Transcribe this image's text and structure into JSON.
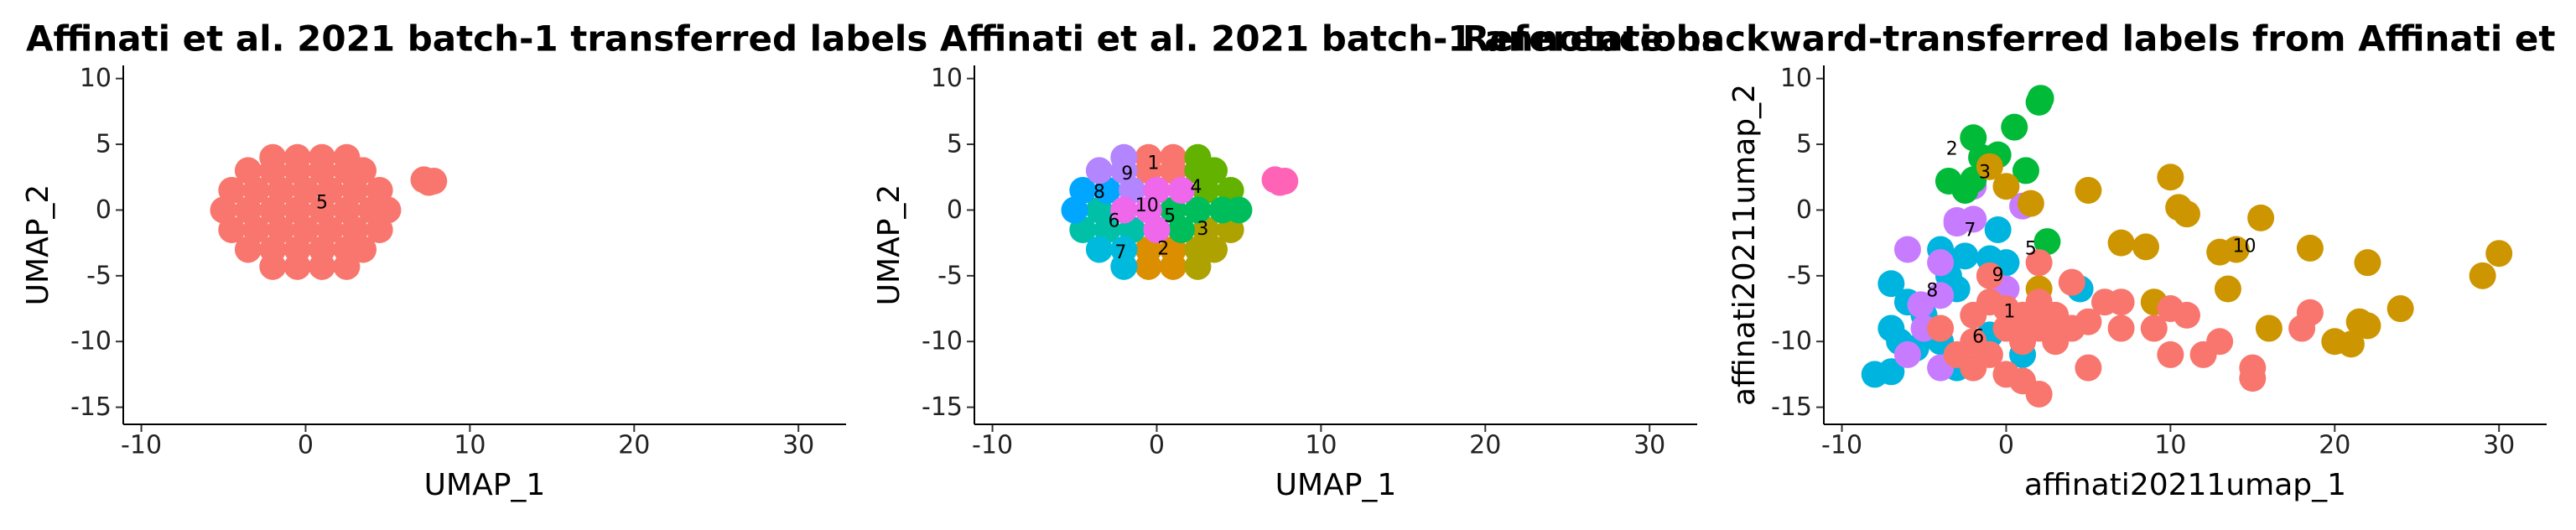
{
  "chart_data": [
    {
      "type": "scatter",
      "title": "Affinati et al. 2021 batch-1 transferred labels",
      "xlabel": "UMAP_1",
      "ylabel": "UMAP_2",
      "xlim": [
        -11.1,
        32.9
      ],
      "ylim": [
        -16.3,
        11
      ],
      "xticks": [
        -10,
        0,
        10,
        20,
        30
      ],
      "yticks": [
        -15,
        -10,
        -5,
        0,
        5,
        10
      ],
      "grid": false,
      "series": [
        {
          "color": "#F8766D",
          "x": [
            -2,
            -0.5,
            1,
            2.5,
            -3.5,
            -2,
            -0.5,
            1,
            2.5,
            3.5,
            -4.5,
            -3,
            -1.5,
            0,
            1.5,
            3,
            4.5,
            -5,
            -3.5,
            -2,
            -0.5,
            1,
            2.5,
            4,
            5,
            -4.5,
            -3,
            -1.5,
            0,
            1.5,
            3,
            4.5,
            -3.5,
            -2,
            -0.5,
            1,
            2.5,
            3.5,
            -2,
            -0.5,
            1,
            2.5,
            7.2,
            7.8,
            7.5
          ],
          "values": [
            4,
            4,
            4,
            4,
            3,
            3,
            3,
            3,
            3,
            3,
            1.5,
            1.5,
            1.5,
            1.5,
            1.5,
            1.5,
            1.5,
            0,
            0,
            0,
            0,
            0,
            0,
            0,
            0,
            -1.5,
            -1.5,
            -1.5,
            -1.5,
            -1.5,
            -1.5,
            -1.5,
            -3,
            -3,
            -3,
            -3,
            -3,
            -3,
            -4.3,
            -4.3,
            -4.3,
            -4.3,
            2.3,
            2.2,
            2.1
          ]
        }
      ],
      "annotations": [
        {
          "text": "5",
          "x": 1,
          "y": 0.5
        }
      ]
    },
    {
      "type": "scatter",
      "title": "Affinati et al. 2021 batch-1 annotations",
      "xlabel": "UMAP_1",
      "ylabel": "UMAP_2",
      "xlim": [
        -11.1,
        32.9
      ],
      "ylim": [
        -16.3,
        11
      ],
      "xticks": [
        -10,
        0,
        10,
        20,
        30
      ],
      "yticks": [
        -15,
        -10,
        -5,
        0,
        5,
        10
      ],
      "grid": false,
      "series": [
        {
          "color": "#F8766D",
          "x": [
            -0.5,
            1,
            -0.5,
            1
          ],
          "values": [
            4,
            4,
            3,
            3
          ]
        },
        {
          "color": "#DB8E00",
          "x": [
            -0.5,
            1,
            -0.5,
            1
          ],
          "values": [
            -3,
            -3,
            -4.3,
            -4.3
          ]
        },
        {
          "color": "#AEA200",
          "x": [
            3,
            4.5,
            2.5,
            3.5,
            2.5
          ],
          "values": [
            -1.5,
            -1.5,
            -3,
            -3,
            -4.3
          ]
        },
        {
          "color": "#64B200",
          "x": [
            2.5,
            2.5,
            3.5,
            3,
            4.5
          ],
          "values": [
            4,
            3,
            3,
            1.5,
            1.5
          ]
        },
        {
          "color": "#00BD5C",
          "x": [
            1,
            2.5,
            1.5,
            4,
            5
          ],
          "values": [
            0,
            0,
            -1.5,
            0,
            0
          ]
        },
        {
          "color": "#00C1A7",
          "x": [
            -3.5,
            -3,
            -1.5,
            -4.5
          ],
          "values": [
            0,
            -1.5,
            -1.5,
            -1.5
          ]
        },
        {
          "color": "#00BADE",
          "x": [
            -3.5,
            -2,
            -2
          ],
          "values": [
            -3,
            -3,
            -4.3
          ]
        },
        {
          "color": "#00A6FF",
          "x": [
            -4.5,
            -3,
            -5
          ],
          "values": [
            1.5,
            1.5,
            0
          ]
        },
        {
          "color": "#B385FF",
          "x": [
            -2,
            -3.5,
            -2,
            -1.5
          ],
          "values": [
            4,
            3,
            3,
            1.5
          ]
        },
        {
          "color": "#EF67EB",
          "x": [
            0,
            1.5,
            -2,
            -0.5,
            0
          ],
          "values": [
            1.5,
            1.5,
            0,
            0,
            -1.5
          ]
        },
        {
          "color": "#FF63B6",
          "x": [
            7.2,
            7.8,
            7.5
          ],
          "values": [
            2.3,
            2.2,
            2.1
          ]
        }
      ],
      "annotations": [
        {
          "text": "1",
          "x": -0.2,
          "y": 3.5
        },
        {
          "text": "9",
          "x": -1.8,
          "y": 2.7
        },
        {
          "text": "8",
          "x": -3.5,
          "y": 1.3
        },
        {
          "text": "4",
          "x": 2.4,
          "y": 1.7
        },
        {
          "text": "10",
          "x": -0.6,
          "y": 0.3
        },
        {
          "text": "6",
          "x": -2.6,
          "y": -0.9
        },
        {
          "text": "5",
          "x": 0.8,
          "y": -0.5
        },
        {
          "text": "3",
          "x": 2.8,
          "y": -1.5
        },
        {
          "text": "7",
          "x": -2.2,
          "y": -3.3
        },
        {
          "text": "2",
          "x": 0.4,
          "y": -3
        }
      ]
    },
    {
      "type": "scatter",
      "title": "Reference backward-transferred labels from Affinati et",
      "xlabel": "affinati20211umap_1",
      "ylabel": "affinati20211umap_2",
      "xlim": [
        -11.1,
        32.9
      ],
      "ylim": [
        -16.3,
        11
      ],
      "xticks": [
        -10,
        0,
        10,
        20,
        30
      ],
      "yticks": [
        -15,
        -10,
        -5,
        0,
        5,
        10
      ],
      "grid": false,
      "series": [
        {
          "color": "#00B4E0",
          "x": [
            -8,
            -7,
            -7,
            -6.5,
            -6,
            -5,
            -5.5,
            -4,
            -3,
            -3.5,
            -2.5,
            -1,
            -0.5,
            0,
            -4,
            4.5,
            -7,
            -3,
            -1,
            1
          ],
          "values": [
            -12.5,
            -12.3,
            -9,
            -10,
            -7,
            -8,
            -10.5,
            -10,
            -6,
            -5,
            -3.5,
            -3.7,
            -1.5,
            -4,
            -3,
            -6,
            -5.6,
            -12,
            -9.5,
            -11
          ]
        },
        {
          "color": "#C77CFF",
          "x": [
            -6,
            -4,
            -3,
            -4,
            -2,
            -3,
            1,
            -2,
            -6,
            -5,
            -4,
            -5.2,
            0
          ],
          "values": [
            -3,
            -4,
            -1,
            -6.5,
            -0.7,
            -0.8,
            0.3,
            1.8,
            -11,
            -9,
            -12,
            -7.2,
            -6
          ]
        },
        {
          "color": "#00BA38",
          "x": [
            2,
            2.1,
            0.5,
            -2,
            -1.5,
            -0.5,
            -3.5,
            -2,
            -2.5,
            2.5,
            1.2
          ],
          "values": [
            8.2,
            8.5,
            6.3,
            5.5,
            4,
            4.2,
            2.2,
            2.3,
            1.5,
            -2.4,
            3
          ]
        },
        {
          "color": "#CD9600",
          "x": [
            -1,
            0,
            1.5,
            5,
            7,
            8.5,
            9,
            10,
            10.5,
            11,
            13,
            13.5,
            14,
            15.5,
            18.5,
            16,
            20,
            21,
            21.5,
            22,
            22,
            24,
            29,
            30,
            2
          ],
          "values": [
            3.3,
            1.8,
            0.5,
            1.5,
            -2.5,
            -2.8,
            -7,
            2.5,
            0.2,
            -0.3,
            -3.2,
            -6,
            -3,
            -0.6,
            -2.9,
            -9,
            -10,
            -10.2,
            -8.5,
            -8.8,
            -4,
            -7.5,
            -5,
            -3.3,
            -6
          ]
        },
        {
          "color": "#F8766D",
          "x": [
            -2,
            -1,
            0,
            1,
            2,
            3,
            -2,
            -1,
            0,
            1,
            2,
            3,
            4,
            -3,
            -2,
            0,
            1,
            2,
            -4,
            5,
            5,
            7,
            7,
            9,
            10,
            10,
            11,
            12,
            13,
            15,
            15,
            18,
            18.5,
            2,
            4,
            -1,
            6
          ],
          "values": [
            -8,
            -7,
            -7.5,
            -8,
            -7,
            -8,
            -10,
            -11,
            -9,
            -10,
            -9,
            -10,
            -9,
            -11,
            -12,
            -12.5,
            -13,
            -14,
            -9,
            -8.5,
            -12,
            -9,
            -7,
            -9,
            -7.5,
            -11,
            -8,
            -11,
            -10,
            -12,
            -12.8,
            -9,
            -7.8,
            -4,
            -5.5,
            -5,
            -7
          ]
        }
      ],
      "annotations": [
        {
          "text": "2",
          "x": -3.3,
          "y": 4.6
        },
        {
          "text": "3",
          "x": -1.3,
          "y": 2.8
        },
        {
          "text": "7",
          "x": -2.2,
          "y": -1.6
        },
        {
          "text": "5",
          "x": 1.5,
          "y": -3
        },
        {
          "text": "10",
          "x": 14.5,
          "y": -2.8
        },
        {
          "text": "9",
          "x": -0.5,
          "y": -5
        },
        {
          "text": "8",
          "x": -4.5,
          "y": -6.2
        },
        {
          "text": "1",
          "x": 0.2,
          "y": -7.8
        },
        {
          "text": "6",
          "x": -1.7,
          "y": -9.7
        }
      ]
    }
  ]
}
